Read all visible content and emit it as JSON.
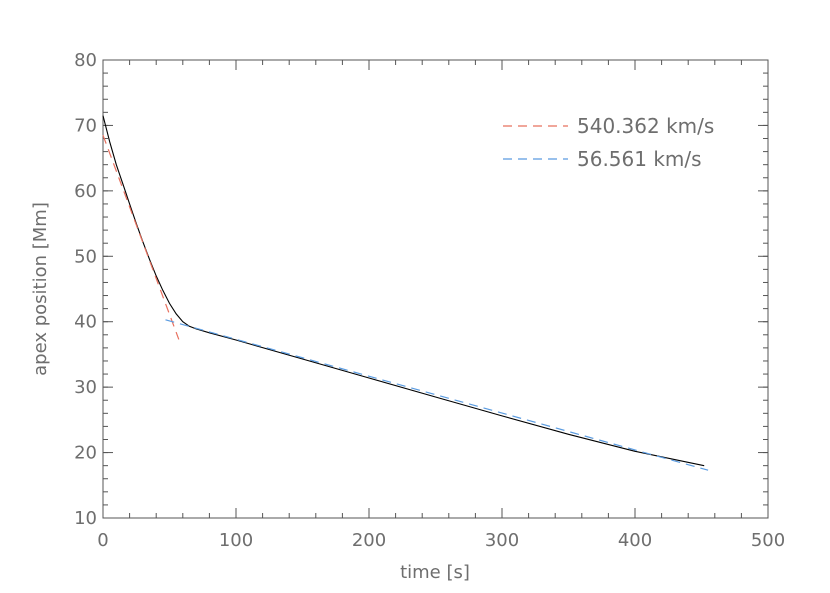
{
  "chart_data": {
    "type": "line",
    "xlabel": "time [s]",
    "ylabel": "apex position [Mm]",
    "xlim": [
      0,
      500
    ],
    "ylim": [
      10,
      80
    ],
    "x_ticks": [
      "0",
      "100",
      "200",
      "300",
      "400",
      "500"
    ],
    "y_ticks": [
      "10",
      "20",
      "30",
      "40",
      "50",
      "60",
      "70",
      "80"
    ],
    "legend_placement": "top-right",
    "series": [
      {
        "role": "data",
        "color": "#000000",
        "style": "solid",
        "x": [
          0,
          5,
          10,
          15,
          20,
          25,
          30,
          35,
          40,
          45,
          50,
          55,
          60,
          65,
          70,
          80,
          100,
          150,
          200,
          250,
          300,
          350,
          400,
          452
        ],
        "y": [
          71.5,
          67.5,
          64.0,
          61.0,
          58.0,
          55.0,
          52.2,
          49.5,
          47.0,
          44.8,
          42.8,
          41.2,
          40.0,
          39.3,
          38.9,
          38.3,
          37.2,
          34.3,
          31.4,
          28.5,
          25.6,
          22.8,
          20.2,
          18.0
        ]
      },
      {
        "name": "540.362 km/s",
        "role": "fit",
        "color": "#e8705e",
        "style": "dashed",
        "x": [
          0,
          57
        ],
        "y": [
          68.5,
          37.3
        ]
      },
      {
        "name": "56.561 km/s",
        "role": "fit",
        "color": "#5a9be0",
        "style": "dashed",
        "x": [
          47,
          455
        ],
        "y": [
          40.3,
          17.3
        ]
      }
    ]
  }
}
